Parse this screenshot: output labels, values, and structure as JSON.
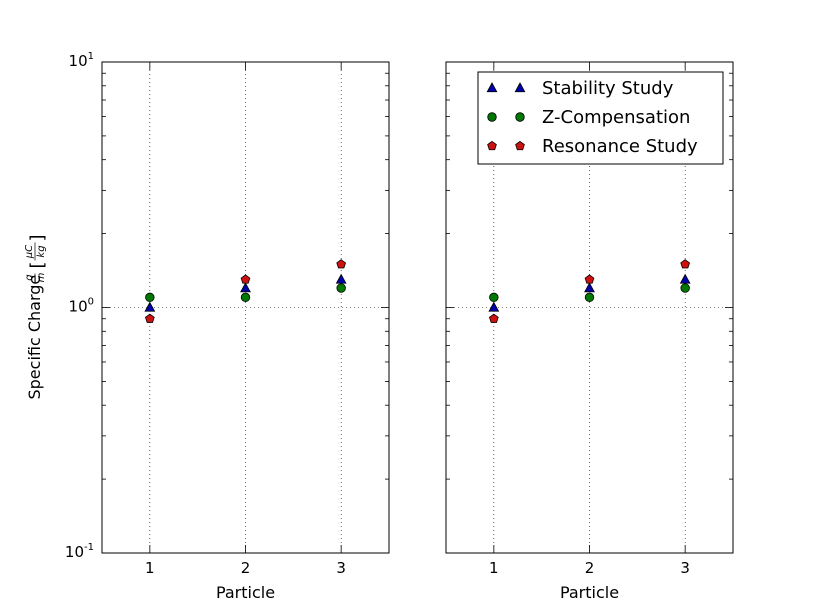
{
  "chart_data": [
    {
      "type": "scatter",
      "title": "",
      "xlabel": "Particle",
      "ylabel": "Specific Charge",
      "ylabel_math": {
        "q": "q",
        "m": "m",
        "unit_num": "μC",
        "unit_den": "kg"
      },
      "x": [
        1,
        2,
        3
      ],
      "x_ticks": [
        "1",
        "2",
        "3"
      ],
      "xlim": [
        0.5,
        3.5
      ],
      "yscale": "log",
      "ylim": [
        0.1,
        10
      ],
      "y_ticks": [
        {
          "base": "10",
          "exp": "-1"
        },
        {
          "base": "10",
          "exp": "0"
        },
        {
          "base": "10",
          "exp": "1"
        }
      ],
      "grid": true,
      "legend": null,
      "series": [
        {
          "name": "Stability Study",
          "marker": "triangle",
          "color": "#0000aa",
          "values": [
            1.0,
            1.2,
            1.3
          ]
        },
        {
          "name": "Z-Compensation",
          "marker": "circle",
          "color": "#007700",
          "values": [
            1.1,
            1.1,
            1.2
          ]
        },
        {
          "name": "Resonance Study",
          "marker": "pentagon",
          "color": "#cc1111",
          "values": [
            0.9,
            1.3,
            1.5
          ]
        }
      ]
    },
    {
      "type": "scatter",
      "title": "",
      "xlabel": "Particle",
      "ylabel": "",
      "x": [
        1,
        2,
        3
      ],
      "x_ticks": [
        "1",
        "2",
        "3"
      ],
      "xlim": [
        0.5,
        3.5
      ],
      "yscale": "log",
      "ylim": [
        0.1,
        10
      ],
      "grid": true,
      "legend": "top-right",
      "series": [
        {
          "name": "Stability Study",
          "marker": "triangle",
          "color": "#0000aa",
          "values": [
            1.0,
            1.2,
            1.3
          ]
        },
        {
          "name": "Z-Compensation",
          "marker": "circle",
          "color": "#007700",
          "values": [
            1.1,
            1.1,
            1.2
          ]
        },
        {
          "name": "Resonance Study",
          "marker": "pentagon",
          "color": "#cc1111",
          "values": [
            0.9,
            1.3,
            1.5
          ]
        }
      ]
    }
  ]
}
